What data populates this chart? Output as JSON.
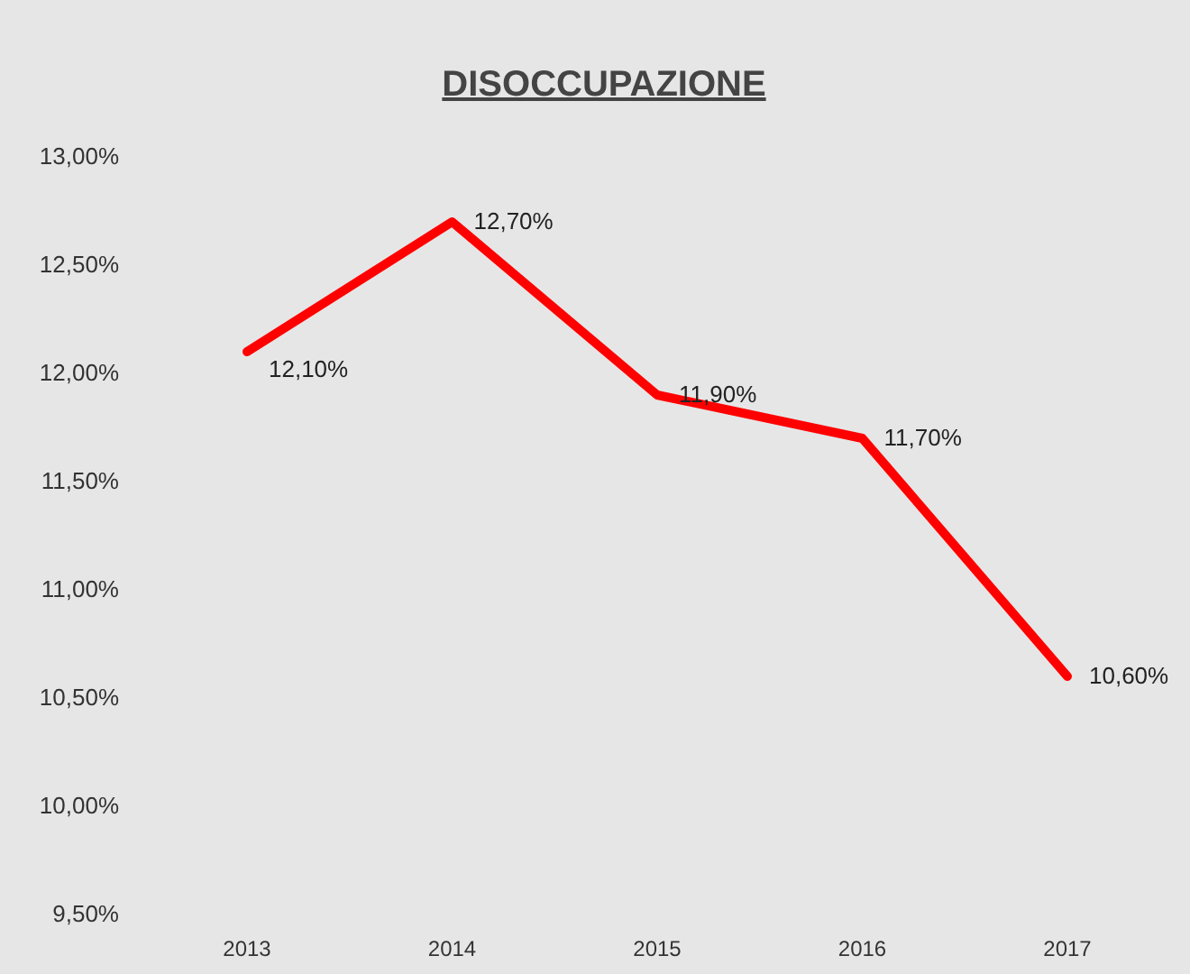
{
  "chart_data": {
    "type": "line",
    "title": "DISOCCUPAZIONE",
    "categories": [
      "2013",
      "2014",
      "2015",
      "2016",
      "2017"
    ],
    "series": [
      {
        "color": "#ff0000",
        "values": [
          12.1,
          12.7,
          11.9,
          11.7,
          10.6
        ],
        "value_labels": [
          "12,10%",
          "12,70%",
          "11,90%",
          "11,70%",
          "10,60%"
        ]
      }
    ],
    "ylim": [
      9.5,
      13
    ],
    "yticks": [
      {
        "value": 9.5,
        "label": "9,50%"
      },
      {
        "value": 10,
        "label": "10,00%"
      },
      {
        "value": 10.5,
        "label": "10,50%"
      },
      {
        "value": 11,
        "label": "11,00%"
      },
      {
        "value": 11.5,
        "label": "11,50%"
      },
      {
        "value": 12,
        "label": "12,00%"
      },
      {
        "value": 12.5,
        "label": "12,50%"
      },
      {
        "value": 13,
        "label": "13,00%"
      }
    ],
    "grid": false,
    "marker": "none",
    "line_style": "solid"
  }
}
